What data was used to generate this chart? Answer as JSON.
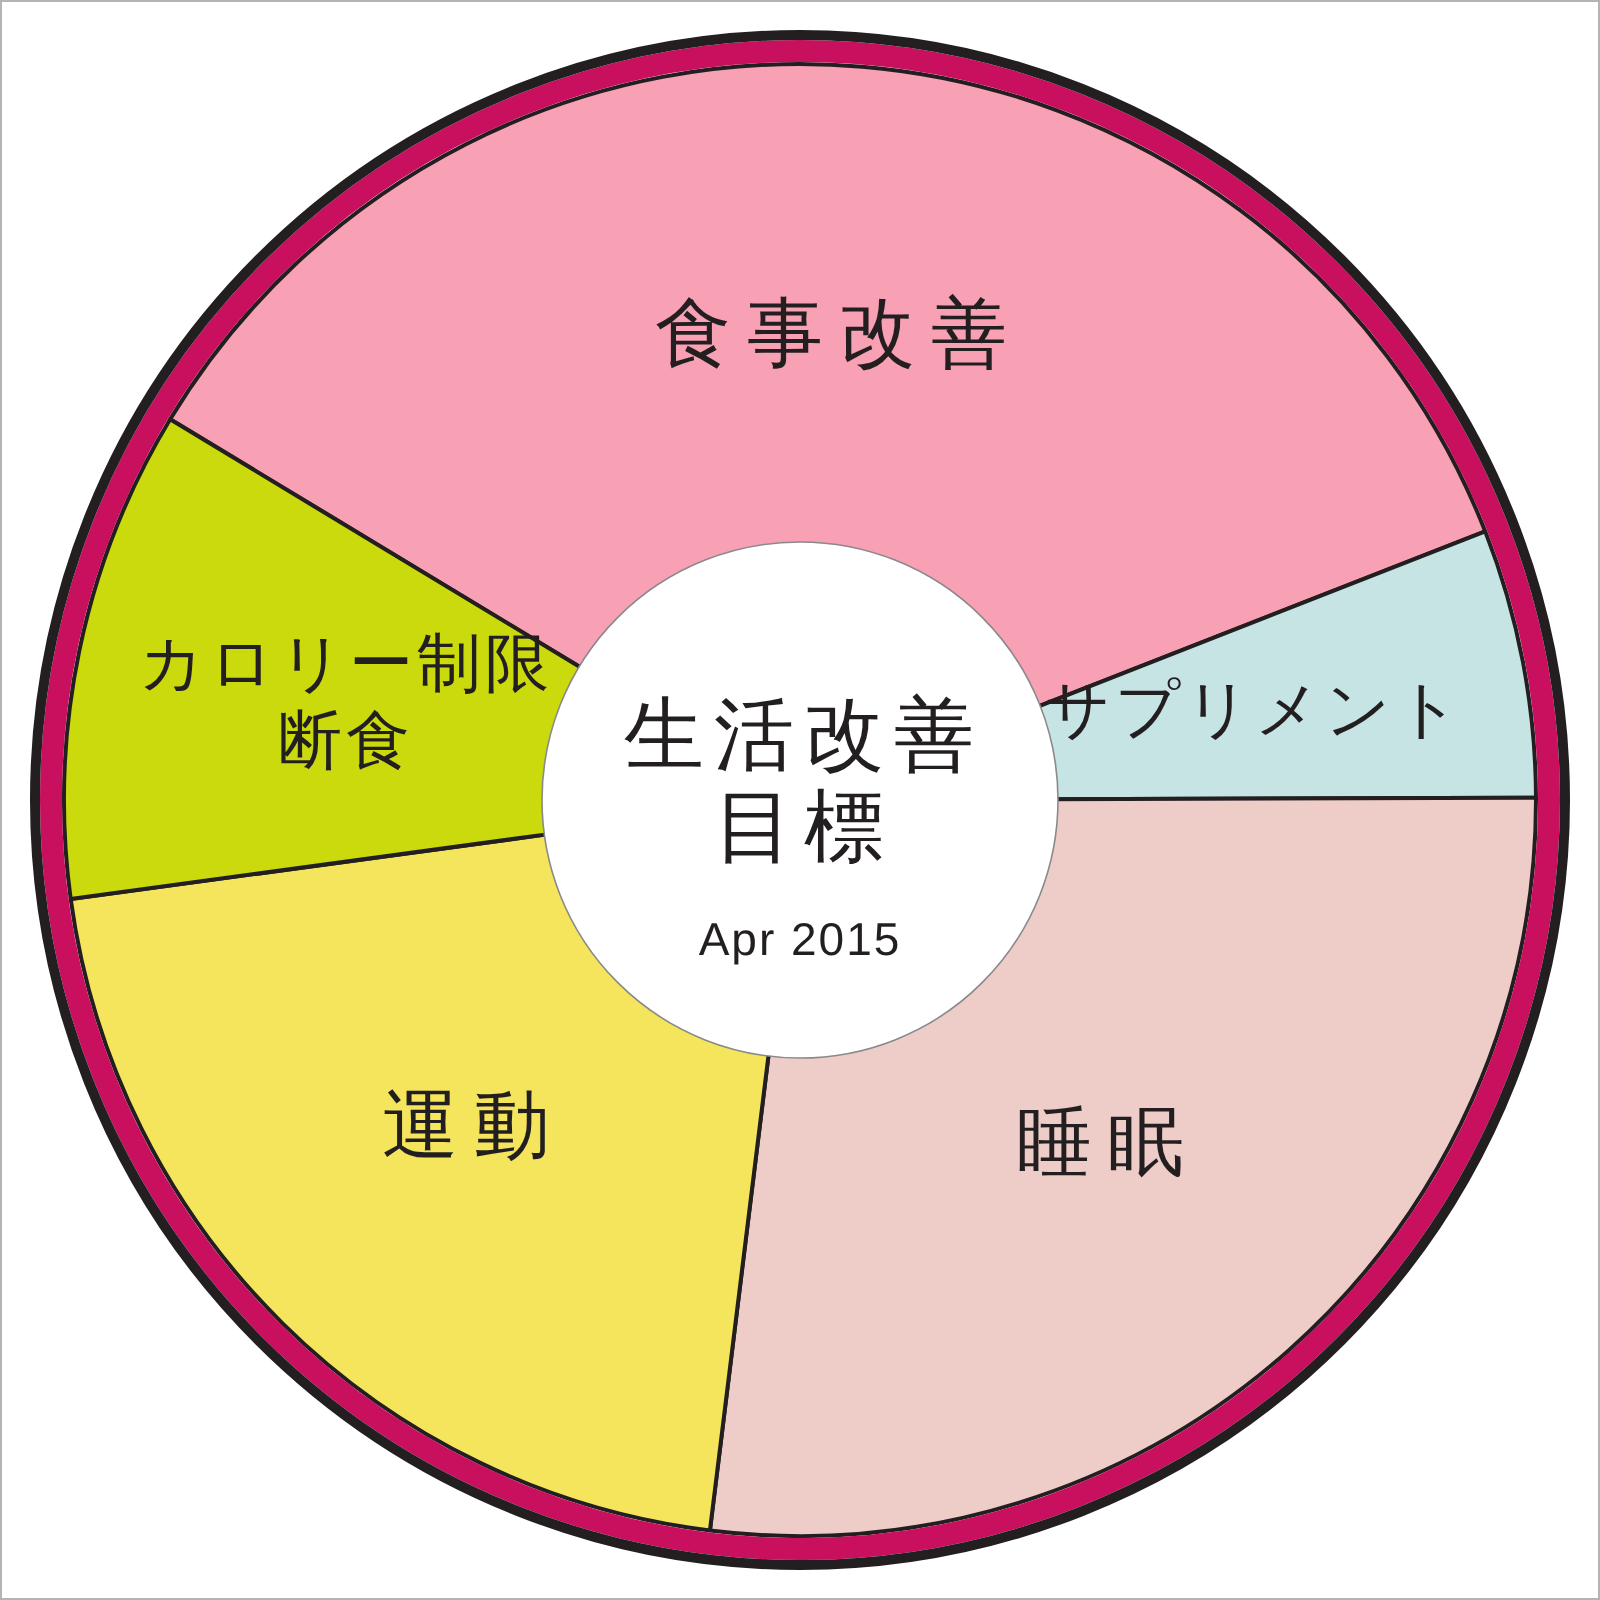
{
  "chart_data": {
    "type": "donut",
    "title": "生活改善目標",
    "subtitle": "Apr 2015",
    "categories": [
      "食事改善",
      "サプリメント",
      "睡眠",
      "運動",
      "カロリー制限断食"
    ],
    "values": [
      35.4,
      5.9,
      27.0,
      20.9,
      10.8
    ],
    "colors": [
      "#f8a0b4",
      "#c6e4e4",
      "#eecdc9",
      "#f4e55d",
      "#cbda0c"
    ]
  }
}
